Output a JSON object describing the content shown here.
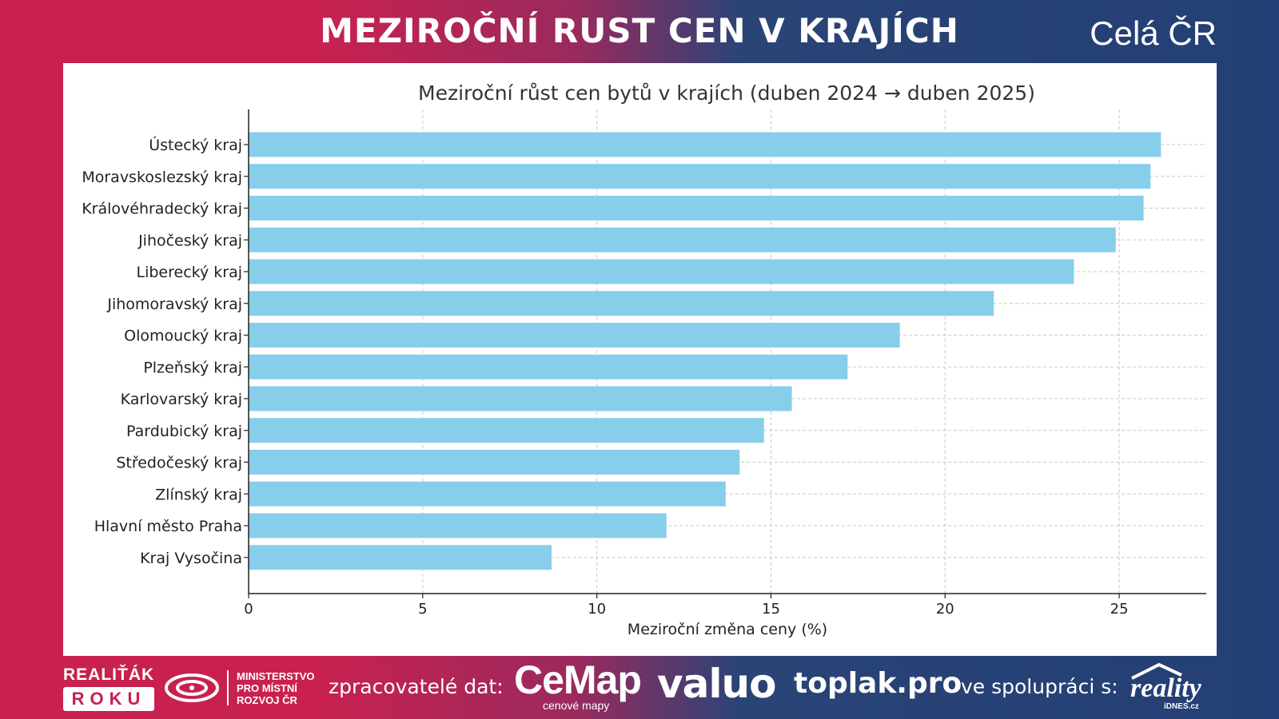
{
  "header": {
    "title": "MEZIROČNÍ RUST CEN V KRAJÍCH",
    "region": "Celá ČR"
  },
  "chart_data": {
    "type": "bar",
    "orientation": "horizontal",
    "title": "Meziroční růst cen bytů v krajích (duben 2024 → duben 2025)",
    "xlabel": "Meziroční změna ceny (%)",
    "ylabel": "",
    "xlim": [
      0,
      27.5
    ],
    "xticks": [
      0,
      5,
      10,
      15,
      20,
      25
    ],
    "grid": true,
    "color": "#87ceeb",
    "categories": [
      "Ústecký kraj",
      "Moravskoslezský kraj",
      "Královéhradecký kraj",
      "Jihočeský kraj",
      "Liberecký kraj",
      "Jihomoravský kraj",
      "Olomoucký kraj",
      "Plzeňský kraj",
      "Karlovarský kraj",
      "Pardubický kraj",
      "Středočeský kraj",
      "Zlínský kraj",
      "Hlavní město Praha",
      "Kraj Vysočina"
    ],
    "values": [
      26.2,
      25.9,
      25.7,
      24.9,
      23.7,
      21.4,
      18.7,
      17.2,
      15.6,
      14.8,
      14.1,
      13.7,
      12.0,
      8.7
    ]
  },
  "footer": {
    "realitak_top": "REALIŤÁK",
    "realitak_box": "ROKU",
    "mmr_line1": "MINISTERSTVO",
    "mmr_line2": "PRO MÍSTNÍ",
    "mmr_line3": "ROZVOJ ČR",
    "data_label": "zpracovatelé dat:",
    "cemap": "CeMap",
    "cemap_sub": "cenové mapy",
    "valuo": "valuo",
    "toplak": "toplak.pro",
    "coop_label": "ve spolupráci s:",
    "reality": "reality",
    "reality_sub": "iDNES.cz"
  }
}
